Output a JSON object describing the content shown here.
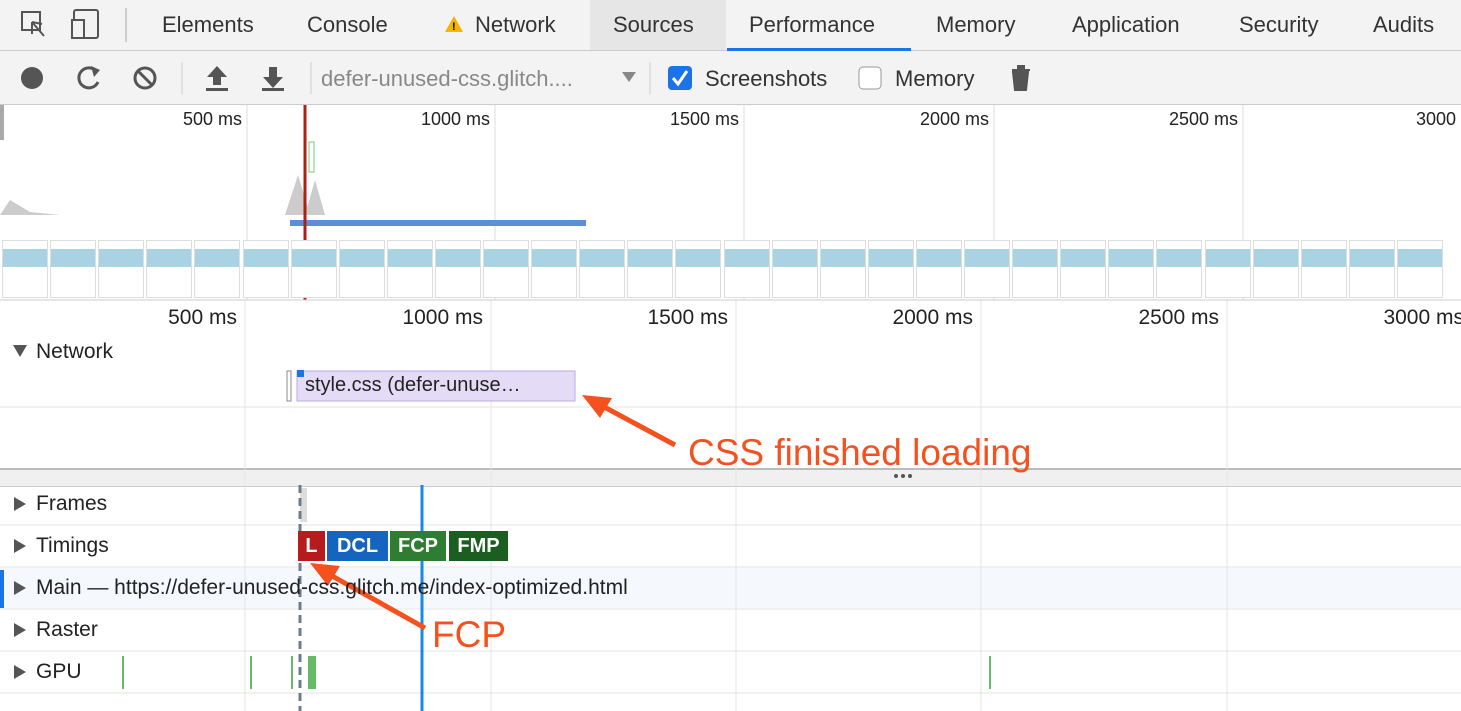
{
  "tabs": [
    "Elements",
    "Console",
    "Network",
    "Sources",
    "Performance",
    "Memory",
    "Application",
    "Security",
    "Audits"
  ],
  "toolbar": {
    "profile": "defer-unused-css.glitch....",
    "screenshots": "Screenshots",
    "memory": "Memory"
  },
  "overview_ticks": [
    "500 ms",
    "1000 ms",
    "1500 ms",
    "2000 ms",
    "2500 ms",
    "3000"
  ],
  "timeline_ticks": [
    "500 ms",
    "1000 ms",
    "1500 ms",
    "2000 ms",
    "2500 ms",
    "3000 ms"
  ],
  "network": {
    "label": "Network",
    "request": "style.css (defer-unuse…"
  },
  "tracks": [
    "Frames",
    "Timings",
    "Main — https://defer-unused-css.glitch.me/index-optimized.html",
    "Raster",
    "GPU"
  ],
  "timings": [
    "L",
    "DCL",
    "FCP",
    "FMP"
  ],
  "annotations": [
    "CSS finished loading",
    "FCP"
  ]
}
